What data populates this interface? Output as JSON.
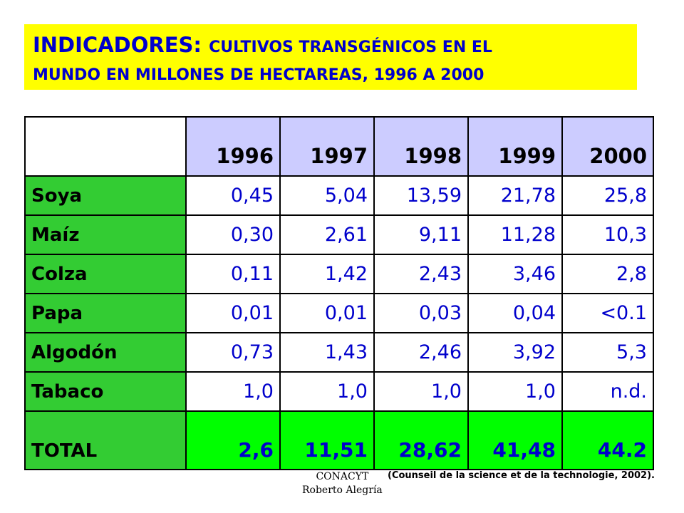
{
  "title": {
    "prefix": "INDICADORES: ",
    "line1": "CULTIVOS TRANSGÉNICOS EN EL",
    "line2": "MUNDO EN MILLONES DE HECTAREAS, 1996 A 2000"
  },
  "table": {
    "corner": "",
    "years": [
      "1996",
      "1997",
      "1998",
      "1999",
      "2000"
    ],
    "rows": [
      {
        "label": "Soya",
        "values": [
          "0,45",
          "5,04",
          "13,59",
          "21,78",
          "25,8"
        ]
      },
      {
        "label": "Maíz",
        "values": [
          "0,30",
          "2,61",
          "9,11",
          "11,28",
          "10,3"
        ]
      },
      {
        "label": "Colza",
        "values": [
          "0,11",
          "1,42",
          "2,43",
          "3,46",
          "2,8"
        ]
      },
      {
        "label": "Papa",
        "values": [
          "0,01",
          "0,01",
          "0,03",
          "0,04",
          "<0.1"
        ]
      },
      {
        "label": "Algodón",
        "values": [
          "0,73",
          "1,43",
          "2,46",
          "3,92",
          "5,3"
        ]
      },
      {
        "label": "Tabaco",
        "values": [
          "1,0",
          "1,0",
          "1,0",
          "1,0",
          "n.d."
        ]
      }
    ],
    "total": {
      "label": "TOTAL",
      "values": [
        "2,6",
        "11,51",
        "28,62",
        "41,48",
        "44.2"
      ]
    }
  },
  "credit": {
    "line1": "CONACYT",
    "line2": "Roberto Alegría"
  },
  "source": "(Counseil de la science et de la technologie, 2002).",
  "colors": {
    "title_bg": "#ffff00",
    "title_text": "#0000cc",
    "header_bg": "#ccccff",
    "label_bg": "#33cc33",
    "total_bg": "#00ff00",
    "value_text": "#0000cc"
  }
}
